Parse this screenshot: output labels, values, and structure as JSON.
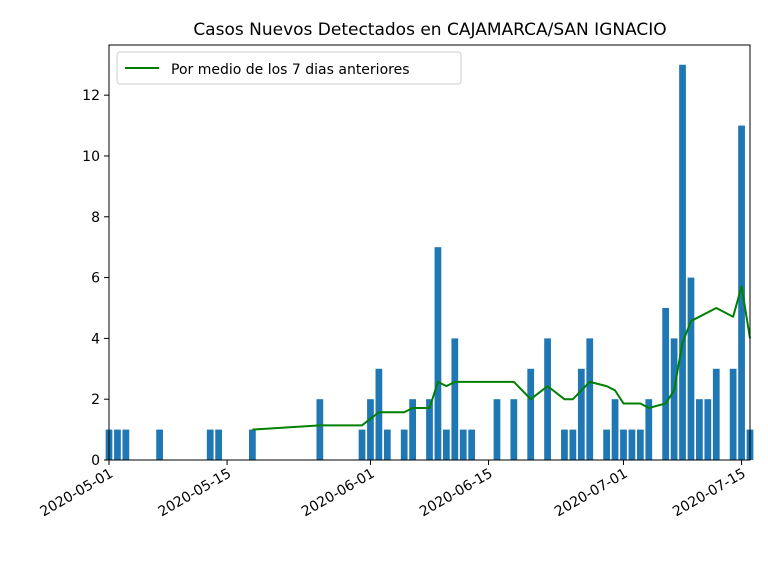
{
  "chart_data": {
    "type": "bar",
    "title": "Casos Nuevos Detectados en CAJAMARCA/SAN IGNACIO",
    "xlabel": "",
    "ylabel": "",
    "xlim": [
      "2020-05-01",
      "2020-07-16"
    ],
    "ylim": [
      0,
      13.65
    ],
    "x_ticks": [
      "2020-05-01",
      "2020-05-15",
      "2020-06-01",
      "2020-06-15",
      "2020-07-01",
      "2020-07-15"
    ],
    "y_ticks": [
      0,
      2,
      4,
      6,
      8,
      10,
      12
    ],
    "grid": false,
    "legend_placement": "upper-left",
    "colors": {
      "bars": "#1f77b4",
      "line": "#008000"
    },
    "bars": [
      {
        "date": "2020-05-01",
        "value": 1
      },
      {
        "date": "2020-05-02",
        "value": 1
      },
      {
        "date": "2020-05-03",
        "value": 1
      },
      {
        "date": "2020-05-07",
        "value": 1
      },
      {
        "date": "2020-05-13",
        "value": 1
      },
      {
        "date": "2020-05-14",
        "value": 1
      },
      {
        "date": "2020-05-18",
        "value": 1
      },
      {
        "date": "2020-05-26",
        "value": 2
      },
      {
        "date": "2020-05-31",
        "value": 1
      },
      {
        "date": "2020-06-01",
        "value": 2
      },
      {
        "date": "2020-06-02",
        "value": 3
      },
      {
        "date": "2020-06-03",
        "value": 1
      },
      {
        "date": "2020-06-05",
        "value": 1
      },
      {
        "date": "2020-06-06",
        "value": 2
      },
      {
        "date": "2020-06-08",
        "value": 2
      },
      {
        "date": "2020-06-09",
        "value": 7
      },
      {
        "date": "2020-06-10",
        "value": 1
      },
      {
        "date": "2020-06-11",
        "value": 4
      },
      {
        "date": "2020-06-12",
        "value": 1
      },
      {
        "date": "2020-06-13",
        "value": 1
      },
      {
        "date": "2020-06-16",
        "value": 2
      },
      {
        "date": "2020-06-18",
        "value": 2
      },
      {
        "date": "2020-06-20",
        "value": 3
      },
      {
        "date": "2020-06-22",
        "value": 4
      },
      {
        "date": "2020-06-24",
        "value": 1
      },
      {
        "date": "2020-06-25",
        "value": 1
      },
      {
        "date": "2020-06-26",
        "value": 3
      },
      {
        "date": "2020-06-27",
        "value": 4
      },
      {
        "date": "2020-06-29",
        "value": 1
      },
      {
        "date": "2020-06-30",
        "value": 2
      },
      {
        "date": "2020-07-01",
        "value": 1
      },
      {
        "date": "2020-07-02",
        "value": 1
      },
      {
        "date": "2020-07-03",
        "value": 1
      },
      {
        "date": "2020-07-04",
        "value": 2
      },
      {
        "date": "2020-07-06",
        "value": 5
      },
      {
        "date": "2020-07-07",
        "value": 4
      },
      {
        "date": "2020-07-08",
        "value": 13
      },
      {
        "date": "2020-07-09",
        "value": 6
      },
      {
        "date": "2020-07-10",
        "value": 2
      },
      {
        "date": "2020-07-11",
        "value": 2
      },
      {
        "date": "2020-07-12",
        "value": 3
      },
      {
        "date": "2020-07-14",
        "value": 3
      },
      {
        "date": "2020-07-15",
        "value": 11
      },
      {
        "date": "2020-07-16",
        "value": 1
      }
    ],
    "series": [
      {
        "name": "Por medio de los 7 dias anteriores",
        "points": [
          {
            "date": "2020-05-18",
            "value": 1.0
          },
          {
            "date": "2020-05-26",
            "value": 1.14
          },
          {
            "date": "2020-05-31",
            "value": 1.14
          },
          {
            "date": "2020-06-02",
            "value": 1.57
          },
          {
            "date": "2020-06-05",
            "value": 1.57
          },
          {
            "date": "2020-06-06",
            "value": 1.71
          },
          {
            "date": "2020-06-08",
            "value": 1.71
          },
          {
            "date": "2020-06-09",
            "value": 2.57
          },
          {
            "date": "2020-06-10",
            "value": 2.43
          },
          {
            "date": "2020-06-11",
            "value": 2.57
          },
          {
            "date": "2020-06-18",
            "value": 2.57
          },
          {
            "date": "2020-06-20",
            "value": 2.0
          },
          {
            "date": "2020-06-22",
            "value": 2.43
          },
          {
            "date": "2020-06-24",
            "value": 2.0
          },
          {
            "date": "2020-06-25",
            "value": 2.0
          },
          {
            "date": "2020-06-27",
            "value": 2.57
          },
          {
            "date": "2020-06-29",
            "value": 2.43
          },
          {
            "date": "2020-06-30",
            "value": 2.29
          },
          {
            "date": "2020-07-01",
            "value": 1.86
          },
          {
            "date": "2020-07-03",
            "value": 1.86
          },
          {
            "date": "2020-07-04",
            "value": 1.71
          },
          {
            "date": "2020-07-06",
            "value": 1.86
          },
          {
            "date": "2020-07-07",
            "value": 2.29
          },
          {
            "date": "2020-07-08",
            "value": 3.86
          },
          {
            "date": "2020-07-09",
            "value": 4.57
          },
          {
            "date": "2020-07-12",
            "value": 5.0
          },
          {
            "date": "2020-07-14",
            "value": 4.71
          },
          {
            "date": "2020-07-15",
            "value": 5.71
          },
          {
            "date": "2020-07-16",
            "value": 4.0
          }
        ]
      }
    ]
  }
}
